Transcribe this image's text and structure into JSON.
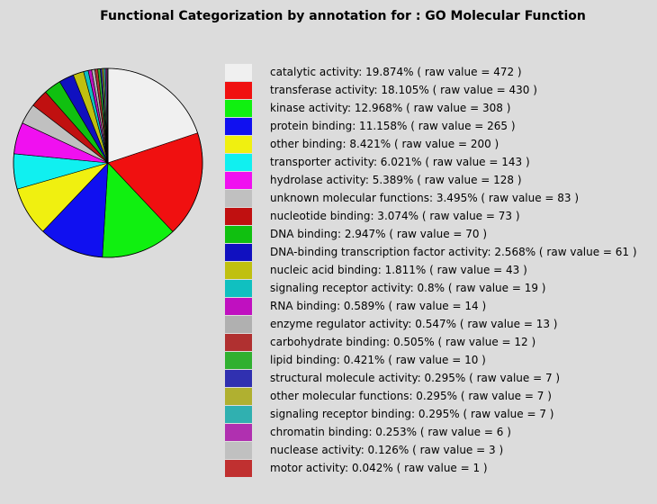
{
  "chart_data": {
    "type": "pie",
    "title": "Functional Categorization by annotation for : GO Molecular Function",
    "slices": [
      {
        "label": "catalytic activity: 19.874% ( raw value = 472 )",
        "value": 472,
        "color": "#f0f0f0"
      },
      {
        "label": "transferase activity: 18.105% ( raw value = 430 )",
        "value": 430,
        "color": "#f01010"
      },
      {
        "label": "kinase activity: 12.968% ( raw value = 308 )",
        "value": 308,
        "color": "#10f010"
      },
      {
        "label": "protein binding: 11.158% ( raw value = 265 )",
        "value": 265,
        "color": "#1010f0"
      },
      {
        "label": "other binding: 8.421% ( raw value = 200 )",
        "value": 200,
        "color": "#f0f010"
      },
      {
        "label": "transporter activity: 6.021% ( raw value = 143 )",
        "value": 143,
        "color": "#10f0f0"
      },
      {
        "label": "hydrolase activity: 5.389% ( raw value = 128 )",
        "value": 128,
        "color": "#f010f0"
      },
      {
        "label": "unknown molecular functions: 3.495% ( raw value = 83 )",
        "value": 83,
        "color": "#c0c0c0"
      },
      {
        "label": "nucleotide binding: 3.074% ( raw value = 73 )",
        "value": 73,
        "color": "#c01010"
      },
      {
        "label": "DNA binding: 2.947% ( raw value = 70 )",
        "value": 70,
        "color": "#10c010"
      },
      {
        "label": "DNA-binding transcription factor activity: 2.568% ( raw value = 61 )",
        "value": 61,
        "color": "#1010c0"
      },
      {
        "label": "nucleic acid binding: 1.811% ( raw value = 43 )",
        "value": 43,
        "color": "#c0c010"
      },
      {
        "label": "signaling receptor activity: 0.8% ( raw value = 19 )",
        "value": 19,
        "color": "#10c0c0"
      },
      {
        "label": "RNA binding: 0.589% ( raw value = 14 )",
        "value": 14,
        "color": "#c010c0"
      },
      {
        "label": "enzyme regulator activity: 0.547% ( raw value = 13 )",
        "value": 13,
        "color": "#b0b0b0"
      },
      {
        "label": "carbohydrate binding: 0.505% ( raw value = 12 )",
        "value": 12,
        "color": "#b03030"
      },
      {
        "label": "lipid binding: 0.421% ( raw value = 10 )",
        "value": 10,
        "color": "#30b030"
      },
      {
        "label": "structural molecule activity: 0.295% ( raw value = 7 )",
        "value": 7,
        "color": "#3030b0"
      },
      {
        "label": "other molecular functions: 0.295% ( raw value = 7 )",
        "value": 7,
        "color": "#b0b030"
      },
      {
        "label": "signaling receptor binding: 0.295% ( raw value = 7 )",
        "value": 7,
        "color": "#30b0b0"
      },
      {
        "label": "chromatin binding: 0.253% ( raw value = 6 )",
        "value": 6,
        "color": "#b030b0"
      },
      {
        "label": "nuclease activity: 0.126% ( raw value = 3 )",
        "value": 3,
        "color": "#c0c0c0"
      },
      {
        "label": "motor activity: 0.042% ( raw value = 1 )",
        "value": 1,
        "color": "#c03030"
      }
    ]
  }
}
